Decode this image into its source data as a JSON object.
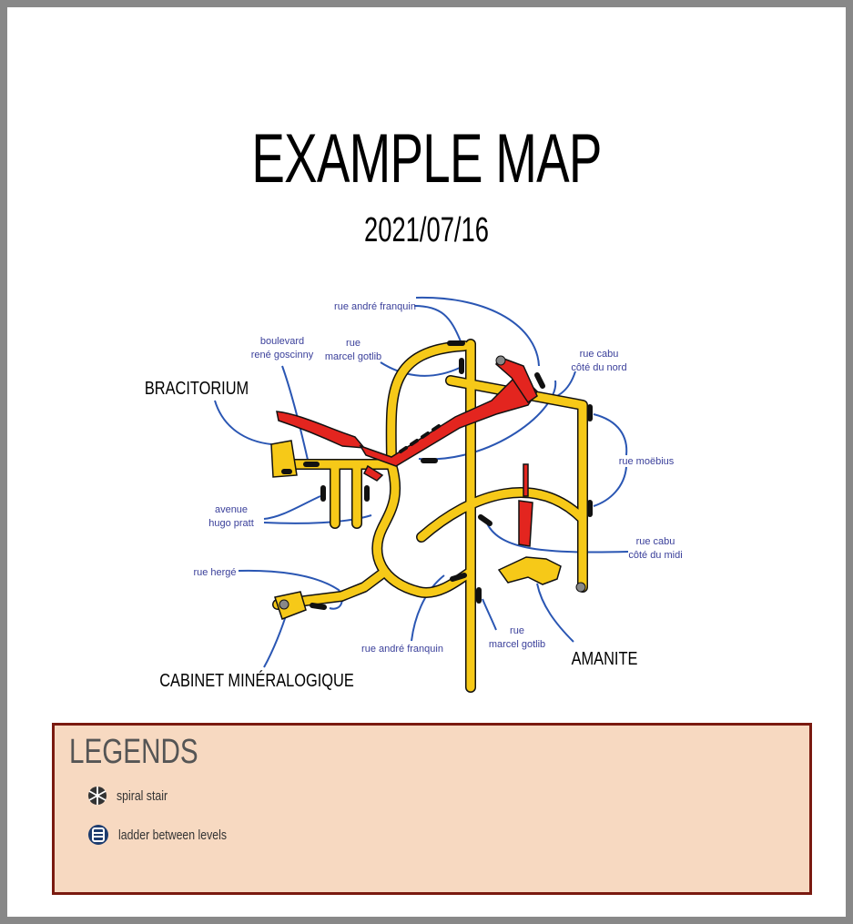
{
  "title": "EXAMPLE MAP",
  "date": "2021/07/16",
  "colors": {
    "tunnel": "#f6c918",
    "upper_level": "#e3251f",
    "street_link": "#2a56b3",
    "frame": "#888888",
    "legend_bg": "#f7d9c1",
    "legend_border": "#7a1a10"
  },
  "places": {
    "bracitorium": "BRACITORIUM",
    "cabinet": "CABINET MINÉRALOGIQUE",
    "amanite": "AMANITE"
  },
  "streets": {
    "andre_franquin_top": "rue andré franquin",
    "goscinny_1": "boulevard",
    "goscinny_2": "rené goscinny",
    "gotlib_top_1": "rue",
    "gotlib_top_2": "marcel gotlib",
    "cabu_nord_1": "rue cabu",
    "cabu_nord_2": "côté du nord",
    "moebius": "rue moëbius",
    "hugo_pratt_1": "avenue",
    "hugo_pratt_2": "hugo pratt",
    "cabu_midi_1": "rue cabu",
    "cabu_midi_2": "côté du midi",
    "herge": "rue hergé",
    "andre_franquin_bottom": "rue andré franquin",
    "gotlib_bottom_1": "rue",
    "gotlib_bottom_2": "marcel gotlib"
  },
  "legend": {
    "title": "LEGENDS",
    "items": [
      {
        "icon": "spiral-stair-icon",
        "label": "spiral stair"
      },
      {
        "icon": "ladder-icon",
        "label": "ladder between levels"
      }
    ]
  }
}
